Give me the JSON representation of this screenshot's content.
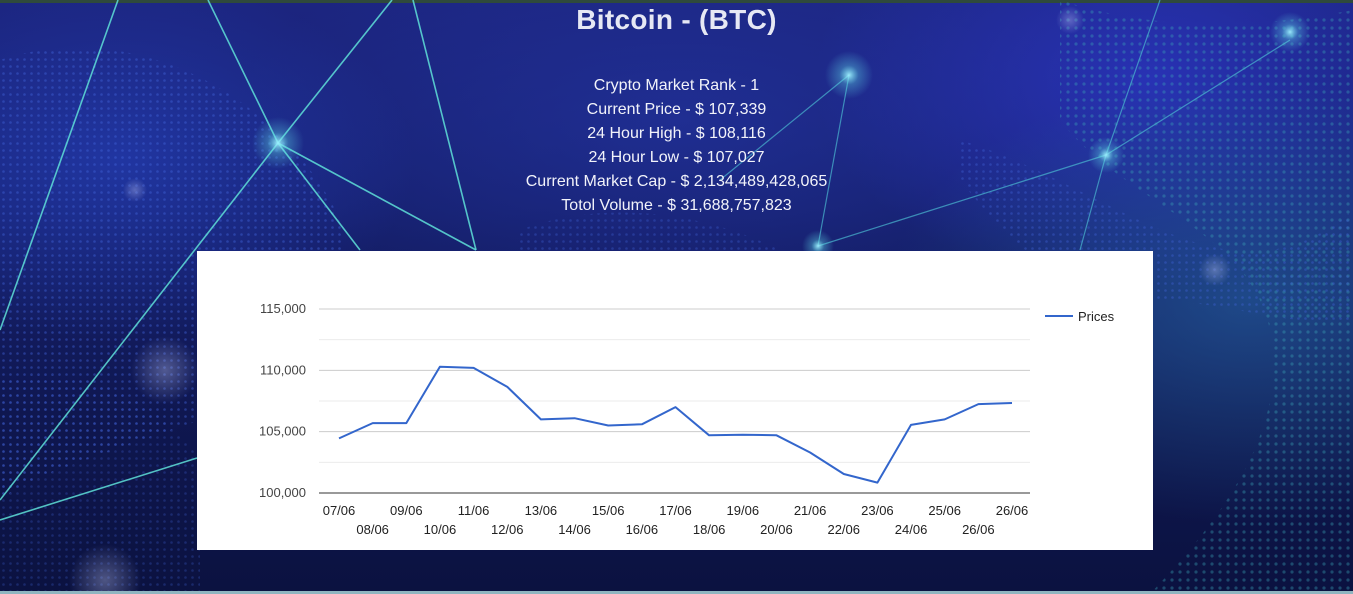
{
  "header": {
    "title": "Bitcoin - (BTC)",
    "stats": [
      "Crypto Market Rank - 1",
      "Current Price - $ 107,339",
      "24 Hour High - $ 108,116",
      "24 Hour Low - $ 107,027",
      "Current Market Cap - $ 2,134,489,428,065",
      "Totol Volume - $ 31,688,757,823"
    ]
  },
  "chart_data": {
    "type": "line",
    "title": "",
    "xlabel": "",
    "ylabel": "",
    "ylim": [
      100000,
      115000
    ],
    "y_ticks": [
      100000,
      105000,
      110000,
      115000
    ],
    "y_tick_labels": [
      "100,000",
      "105,000",
      "110,000",
      "115,000"
    ],
    "legend_position": "top-right",
    "grid": true,
    "line_color": "#3366cc",
    "x": [
      "07/06",
      "08/06",
      "09/06",
      "10/06",
      "11/06",
      "12/06",
      "13/06",
      "14/06",
      "15/06",
      "16/06",
      "17/06",
      "18/06",
      "19/06",
      "20/06",
      "21/06",
      "22/06",
      "23/06",
      "24/06",
      "25/06",
      "26/06",
      "26/06"
    ],
    "x_tick_labels_row1": [
      "07/06",
      "09/06",
      "11/06",
      "13/06",
      "15/06",
      "17/06",
      "19/06",
      "21/06",
      "23/06",
      "25/06",
      "26/06"
    ],
    "x_tick_labels_row2": [
      "08/06",
      "10/06",
      "12/06",
      "14/06",
      "16/06",
      "18/06",
      "20/06",
      "22/06",
      "24/06",
      "26/06"
    ],
    "series": [
      {
        "name": "Prices",
        "values": [
          104450,
          105700,
          105700,
          110300,
          110200,
          108650,
          106000,
          106100,
          105500,
          105600,
          107000,
          104700,
          104750,
          104700,
          103300,
          101550,
          100850,
          105550,
          106000,
          107250,
          107339
        ]
      }
    ]
  }
}
